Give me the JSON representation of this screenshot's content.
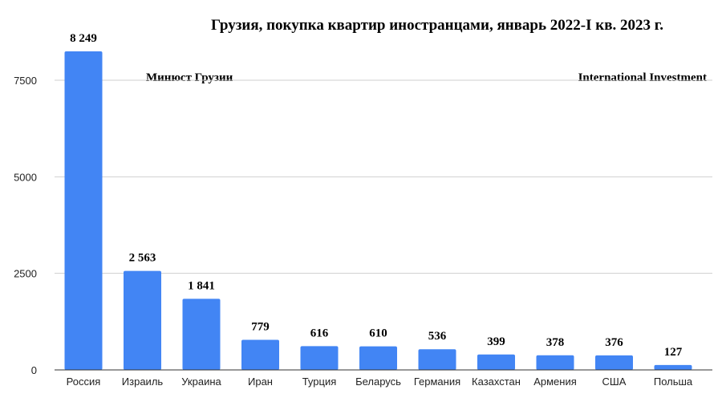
{
  "chart_data": {
    "type": "bar",
    "title": "Грузия, покупка квартир иностранцами, январь 2022-I кв. 2023 г.",
    "annotations": [
      "Минюст Грузии",
      "International Investment"
    ],
    "categories": [
      "Россия",
      "Израиль",
      "Украина",
      "Иран",
      "Турция",
      "Беларусь",
      "Германия",
      "Казахстан",
      "Армения",
      "США",
      "Польша"
    ],
    "values": [
      8249,
      2563,
      1841,
      779,
      616,
      610,
      536,
      399,
      378,
      376,
      127
    ],
    "data_labels": [
      "8 249",
      "2 563",
      "1 841",
      "779",
      "616",
      "610",
      "536",
      "399",
      "378",
      "376",
      "127"
    ],
    "yticks": [
      0,
      2500,
      5000,
      7500
    ],
    "ylim": [
      0,
      7500
    ],
    "grid": true,
    "bar_color": "#4285f4"
  }
}
